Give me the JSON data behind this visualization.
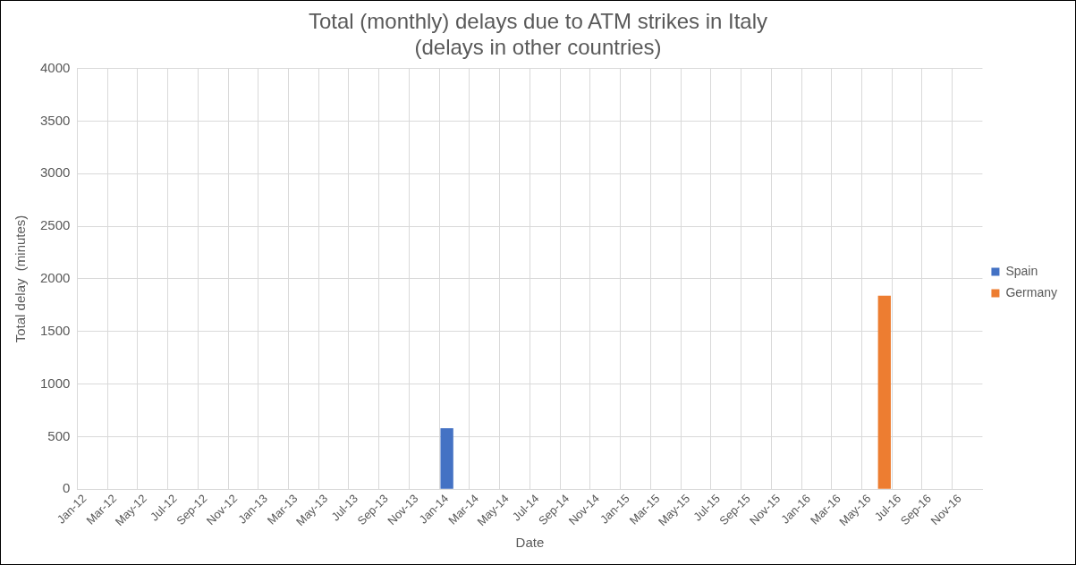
{
  "chart_data": {
    "type": "bar",
    "title": "Total (monthly) delays due to ATM strikes in Italy",
    "subtitle": "(delays in other countries)",
    "xlabel": "Date",
    "ylabel": "Total delay  (minutes)",
    "categories": [
      "Jan-12",
      null,
      "Mar-12",
      null,
      "May-12",
      null,
      "Jul-12",
      null,
      "Sep-12",
      null,
      "Nov-12",
      null,
      "Jan-13",
      null,
      "Mar-13",
      null,
      "May-13",
      null,
      "Jul-13",
      null,
      "Sep-13",
      null,
      "Nov-13",
      null,
      "Jan-14",
      null,
      "Mar-14",
      null,
      "May-14",
      null,
      "Jul-14",
      null,
      "Sep-14",
      null,
      "Nov-14",
      null,
      "Jan-15",
      null,
      "Mar-15",
      null,
      "May-15",
      null,
      "Jul-15",
      null,
      "Sep-15",
      null,
      "Nov-15",
      null,
      "Jan-16",
      null,
      "Mar-16",
      null,
      "May-16",
      null,
      "Jul-16",
      null,
      "Sep-16",
      null,
      "Nov-16",
      null
    ],
    "series": [
      {
        "name": "Spain",
        "color": "#4472c4",
        "values": [
          null,
          null,
          null,
          null,
          null,
          null,
          null,
          null,
          null,
          null,
          null,
          null,
          null,
          null,
          null,
          null,
          null,
          null,
          null,
          null,
          null,
          null,
          null,
          null,
          580,
          null,
          null,
          null,
          null,
          null,
          null,
          null,
          null,
          null,
          null,
          null,
          null,
          null,
          null,
          null,
          null,
          null,
          null,
          null,
          null,
          null,
          null,
          null,
          null,
          null,
          null,
          null,
          null,
          null,
          null,
          null,
          null,
          null,
          null,
          null
        ]
      },
      {
        "name": "Germany",
        "color": "#ed7d31",
        "values": [
          null,
          null,
          null,
          null,
          null,
          null,
          null,
          null,
          null,
          null,
          null,
          null,
          null,
          null,
          null,
          null,
          null,
          null,
          null,
          null,
          null,
          null,
          null,
          null,
          null,
          null,
          null,
          null,
          null,
          null,
          null,
          null,
          null,
          null,
          null,
          null,
          null,
          null,
          null,
          null,
          null,
          null,
          null,
          null,
          null,
          null,
          null,
          null,
          null,
          null,
          null,
          null,
          null,
          1840,
          null,
          null,
          null,
          null,
          null,
          null
        ]
      }
    ],
    "ylim": [
      0,
      4000
    ],
    "yticks": [
      0,
      500,
      1000,
      1500,
      2000,
      2500,
      3000,
      3500,
      4000
    ],
    "grid": true,
    "legend": "right"
  }
}
